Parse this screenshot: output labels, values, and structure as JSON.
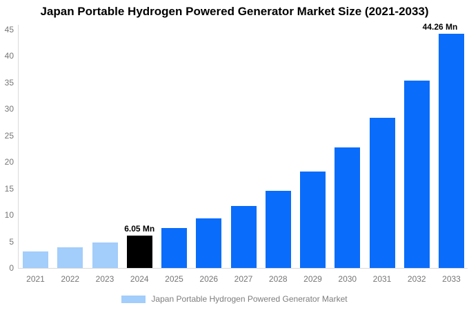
{
  "title": "Japan Portable Hydrogen Powered Generator Market Size (2021-2033)",
  "legend": {
    "label": "Japan Portable Hydrogen Powered Generator Market"
  },
  "colors": {
    "background": "#ffffff",
    "historical_bar": "#a3cdfb",
    "highlight_bar": "#000000",
    "forecast_bar": "#0a6cfa",
    "legend_swatch": "#a3cdfb",
    "axis_line": "#d9d9d9",
    "tick_label": "#757575",
    "legend_text": "#7d7d7d",
    "data_label": "#000000"
  },
  "chart_data": {
    "type": "bar",
    "title": "Japan Portable Hydrogen Powered Generator Market Size (2021-2033)",
    "categories": [
      "2021",
      "2022",
      "2023",
      "2024",
      "2025",
      "2026",
      "2027",
      "2028",
      "2029",
      "2030",
      "2031",
      "2032",
      "2033"
    ],
    "values": [
      3.1,
      3.85,
      4.85,
      6.05,
      7.54,
      9.4,
      11.73,
      14.63,
      18.24,
      22.75,
      28.37,
      35.38,
      44.26
    ],
    "bar_styles": [
      "historical",
      "historical",
      "historical",
      "highlight",
      "forecast",
      "forecast",
      "forecast",
      "forecast",
      "forecast",
      "forecast",
      "forecast",
      "forecast",
      "forecast"
    ],
    "unit": "Mn",
    "xlabel": "",
    "ylabel": "",
    "ylim": [
      0,
      45
    ],
    "yticks": [
      0,
      5,
      10,
      15,
      20,
      25,
      30,
      35,
      40,
      45
    ],
    "grid": false,
    "legend_position": "bottom",
    "data_labels": [
      {
        "index": 3,
        "text": "6.05 Mn"
      },
      {
        "index": 12,
        "text": "44.26 Mn"
      }
    ]
  }
}
